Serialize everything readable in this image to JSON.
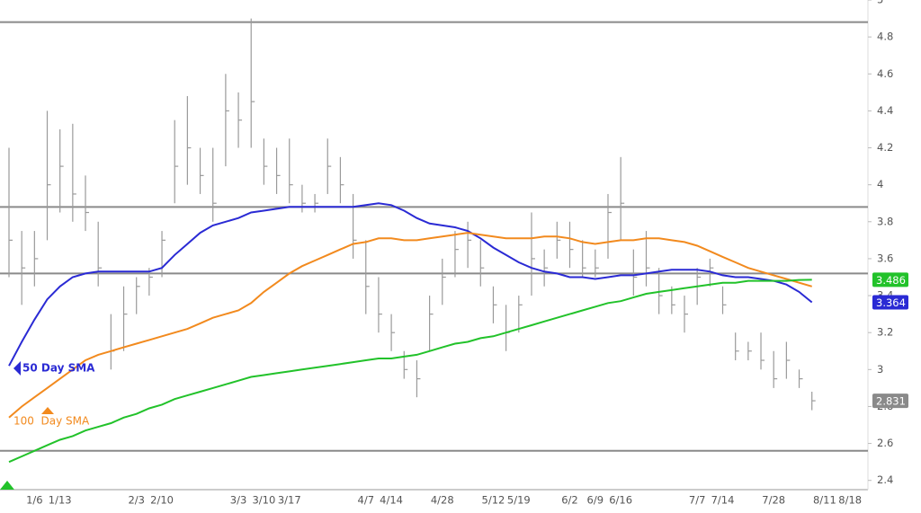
{
  "chart_data": {
    "type": "ohlc",
    "ylim": [
      2.35,
      5.0
    ],
    "yticks": [
      2.4,
      2.6,
      2.8,
      3,
      3.2,
      3.4,
      3.6,
      3.8,
      4,
      4.2,
      4.4,
      4.6,
      4.8,
      5
    ],
    "levels": [
      4.88,
      3.88,
      3.52,
      2.56
    ],
    "categories": [
      null,
      null,
      "1/6",
      null,
      "1/13",
      null,
      null,
      null,
      null,
      null,
      "2/3",
      null,
      "2/10",
      null,
      null,
      null,
      null,
      null,
      "3/3",
      null,
      "3/10",
      null,
      "3/17",
      null,
      null,
      null,
      null,
      null,
      "4/7",
      null,
      "4/14",
      null,
      null,
      null,
      "4/28",
      null,
      null,
      null,
      "5/12",
      null,
      "5/19",
      null,
      null,
      null,
      "6/2",
      null,
      "6/9",
      null,
      "6/16",
      null,
      null,
      null,
      null,
      null,
      "7/7",
      null,
      "7/14",
      null,
      null,
      null,
      "7/28",
      null,
      null,
      null,
      "8/11",
      null,
      "8/18"
    ],
    "price": {
      "color": "#9a9a9a",
      "high": [
        4.2,
        3.75,
        3.75,
        4.4,
        4.3,
        4.33,
        4.05,
        3.8,
        3.3,
        3.45,
        3.5,
        3.55,
        3.75,
        4.35,
        4.48,
        4.2,
        4.2,
        4.6,
        4.5,
        4.9,
        4.25,
        4.2,
        4.25,
        4.0,
        3.95,
        4.25,
        4.15,
        3.95,
        3.7,
        3.5,
        3.3,
        3.1,
        3.05,
        3.4,
        3.6,
        3.75,
        3.8,
        3.7,
        3.45,
        3.35,
        3.4,
        3.85,
        3.65,
        3.8,
        3.8,
        3.7,
        3.65,
        3.95,
        4.15,
        3.65,
        3.75,
        3.55,
        3.45,
        3.4,
        3.55,
        3.6,
        3.45,
        3.2,
        3.15,
        3.2,
        3.1,
        3.15,
        3.0,
        2.88,
        null,
        null,
        null
      ],
      "low": [
        3.5,
        3.35,
        3.45,
        3.7,
        3.85,
        3.8,
        3.75,
        3.45,
        3.0,
        3.1,
        3.3,
        3.4,
        3.5,
        3.9,
        4.0,
        3.95,
        3.8,
        4.1,
        4.2,
        4.2,
        4.0,
        3.95,
        3.9,
        3.85,
        3.85,
        3.95,
        3.9,
        3.6,
        3.3,
        3.2,
        3.1,
        2.95,
        2.85,
        3.1,
        3.35,
        3.5,
        3.55,
        3.45,
        3.25,
        3.1,
        3.2,
        3.4,
        3.45,
        3.6,
        3.55,
        3.5,
        3.5,
        3.6,
        3.7,
        3.4,
        3.45,
        3.3,
        3.3,
        3.2,
        3.35,
        3.45,
        3.3,
        3.05,
        3.05,
        3.0,
        2.9,
        2.95,
        2.9,
        2.78,
        null,
        null,
        null
      ],
      "close": [
        3.7,
        3.55,
        3.6,
        4.0,
        4.1,
        3.95,
        3.85,
        3.55,
        3.1,
        3.3,
        3.45,
        3.5,
        3.7,
        4.1,
        4.2,
        4.05,
        3.9,
        4.4,
        4.35,
        4.45,
        4.1,
        4.05,
        4.0,
        3.9,
        3.9,
        4.1,
        4.0,
        3.7,
        3.45,
        3.3,
        3.2,
        3.0,
        2.95,
        3.3,
        3.5,
        3.65,
        3.7,
        3.55,
        3.35,
        3.2,
        3.35,
        3.6,
        3.55,
        3.7,
        3.65,
        3.55,
        3.55,
        3.85,
        3.9,
        3.5,
        3.55,
        3.4,
        3.35,
        3.3,
        3.5,
        3.55,
        3.35,
        3.1,
        3.1,
        3.05,
        2.95,
        3.05,
        2.95,
        2.831,
        null,
        null,
        null
      ],
      "label_color": "#8a8a8a"
    },
    "moving_averages": [
      {
        "name": "50 Day SMA",
        "color": "#2a2ad4",
        "values": [
          3.02,
          3.15,
          3.27,
          3.38,
          3.45,
          3.5,
          3.52,
          3.53,
          3.53,
          3.53,
          3.53,
          3.53,
          3.55,
          3.62,
          3.68,
          3.74,
          3.78,
          3.8,
          3.82,
          3.85,
          3.86,
          3.87,
          3.88,
          3.88,
          3.88,
          3.88,
          3.88,
          3.88,
          3.89,
          3.9,
          3.89,
          3.86,
          3.82,
          3.79,
          3.78,
          3.77,
          3.75,
          3.71,
          3.66,
          3.62,
          3.58,
          3.55,
          3.53,
          3.52,
          3.5,
          3.5,
          3.49,
          3.5,
          3.51,
          3.51,
          3.52,
          3.53,
          3.54,
          3.54,
          3.54,
          3.53,
          3.51,
          3.5,
          3.5,
          3.49,
          3.48,
          3.46,
          3.42,
          3.364,
          null,
          null,
          null
        ]
      },
      {
        "name": "100  Day SMA",
        "color": "#f28a1e",
        "values": [
          2.74,
          2.8,
          2.85,
          2.9,
          2.95,
          3.0,
          3.05,
          3.08,
          3.1,
          3.12,
          3.14,
          3.16,
          3.18,
          3.2,
          3.22,
          3.25,
          3.28,
          3.3,
          3.32,
          3.36,
          3.42,
          3.47,
          3.52,
          3.56,
          3.59,
          3.62,
          3.65,
          3.68,
          3.69,
          3.71,
          3.71,
          3.7,
          3.7,
          3.71,
          3.72,
          3.73,
          3.74,
          3.73,
          3.72,
          3.71,
          3.71,
          3.71,
          3.72,
          3.72,
          3.71,
          3.69,
          3.68,
          3.69,
          3.7,
          3.7,
          3.71,
          3.71,
          3.7,
          3.69,
          3.67,
          3.64,
          3.61,
          3.58,
          3.55,
          3.53,
          3.51,
          3.49,
          3.47,
          3.45,
          null,
          null,
          null
        ]
      },
      {
        "color": "#22c22a",
        "values": [
          2.5,
          2.53,
          2.56,
          2.59,
          2.62,
          2.64,
          2.67,
          2.69,
          2.71,
          2.74,
          2.76,
          2.79,
          2.81,
          2.84,
          2.86,
          2.88,
          2.9,
          2.92,
          2.94,
          2.96,
          2.97,
          2.98,
          2.99,
          3.0,
          3.01,
          3.02,
          3.03,
          3.04,
          3.05,
          3.06,
          3.06,
          3.07,
          3.08,
          3.1,
          3.12,
          3.14,
          3.15,
          3.17,
          3.18,
          3.2,
          3.22,
          3.24,
          3.26,
          3.28,
          3.3,
          3.32,
          3.34,
          3.36,
          3.37,
          3.39,
          3.41,
          3.42,
          3.43,
          3.44,
          3.45,
          3.46,
          3.47,
          3.47,
          3.48,
          3.48,
          3.48,
          3.48,
          3.485,
          3.486,
          null,
          null,
          null
        ]
      }
    ],
    "level_color": "#8a8a8a"
  }
}
